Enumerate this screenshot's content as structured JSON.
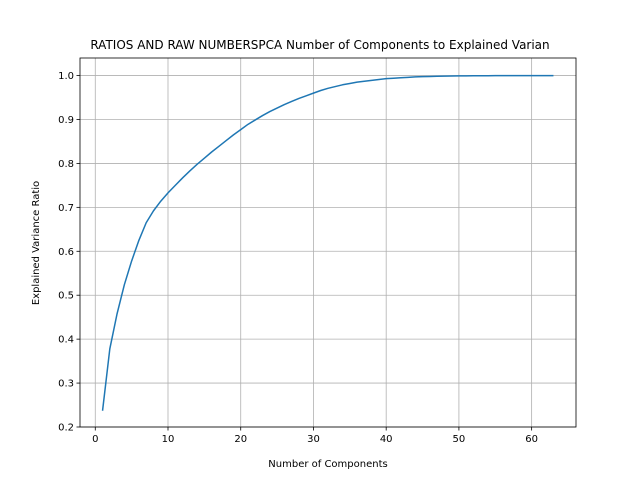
{
  "chart_data": {
    "type": "line",
    "title": "RATIOS AND RAW NUMBERSPCA Number of Components to Explained Varian",
    "xlabel": "Number of Components",
    "ylabel": "Explained Variance Ratio",
    "xlim": [
      -2.1,
      66.1
    ],
    "ylim": [
      0.2,
      1.04
    ],
    "xticks": [
      0,
      10,
      20,
      30,
      40,
      50,
      60
    ],
    "yticks": [
      0.2,
      0.3,
      0.4,
      0.5,
      0.6,
      0.7,
      0.8,
      0.9,
      1.0
    ],
    "xtick_labels": [
      "0",
      "10",
      "20",
      "30",
      "40",
      "50",
      "60"
    ],
    "ytick_labels": [
      "0.2",
      "0.3",
      "0.4",
      "0.5",
      "0.6",
      "0.7",
      "0.8",
      "0.9",
      "1.0"
    ],
    "grid": true,
    "line_color": "#1f77b4",
    "series": [
      {
        "x": [
          1,
          2,
          3,
          4,
          5,
          6,
          7,
          8,
          9,
          10,
          11,
          12,
          13,
          14,
          15,
          16,
          17,
          18,
          19,
          20,
          21,
          22,
          23,
          24,
          25,
          26,
          27,
          28,
          29,
          30,
          31,
          32,
          33,
          34,
          35,
          36,
          37,
          38,
          39,
          40,
          41,
          42,
          43,
          44,
          45,
          46,
          47,
          48,
          49,
          50,
          51,
          52,
          53,
          54,
          55,
          56,
          57,
          58,
          59,
          60,
          61,
          62,
          63
        ],
        "values": [
          0.237,
          0.378,
          0.458,
          0.524,
          0.578,
          0.625,
          0.665,
          0.692,
          0.714,
          0.733,
          0.75,
          0.767,
          0.783,
          0.798,
          0.812,
          0.826,
          0.839,
          0.852,
          0.865,
          0.877,
          0.889,
          0.899,
          0.909,
          0.918,
          0.926,
          0.934,
          0.941,
          0.948,
          0.954,
          0.96,
          0.966,
          0.971,
          0.975,
          0.979,
          0.982,
          0.985,
          0.987,
          0.989,
          0.991,
          0.993,
          0.994,
          0.995,
          0.996,
          0.997,
          0.9975,
          0.998,
          0.9984,
          0.9987,
          0.999,
          0.9992,
          0.9994,
          0.9995,
          0.9996,
          0.9997,
          0.9998,
          0.9998,
          0.9999,
          0.9999,
          0.9999,
          1.0,
          1.0,
          1.0,
          1.0
        ]
      }
    ]
  }
}
